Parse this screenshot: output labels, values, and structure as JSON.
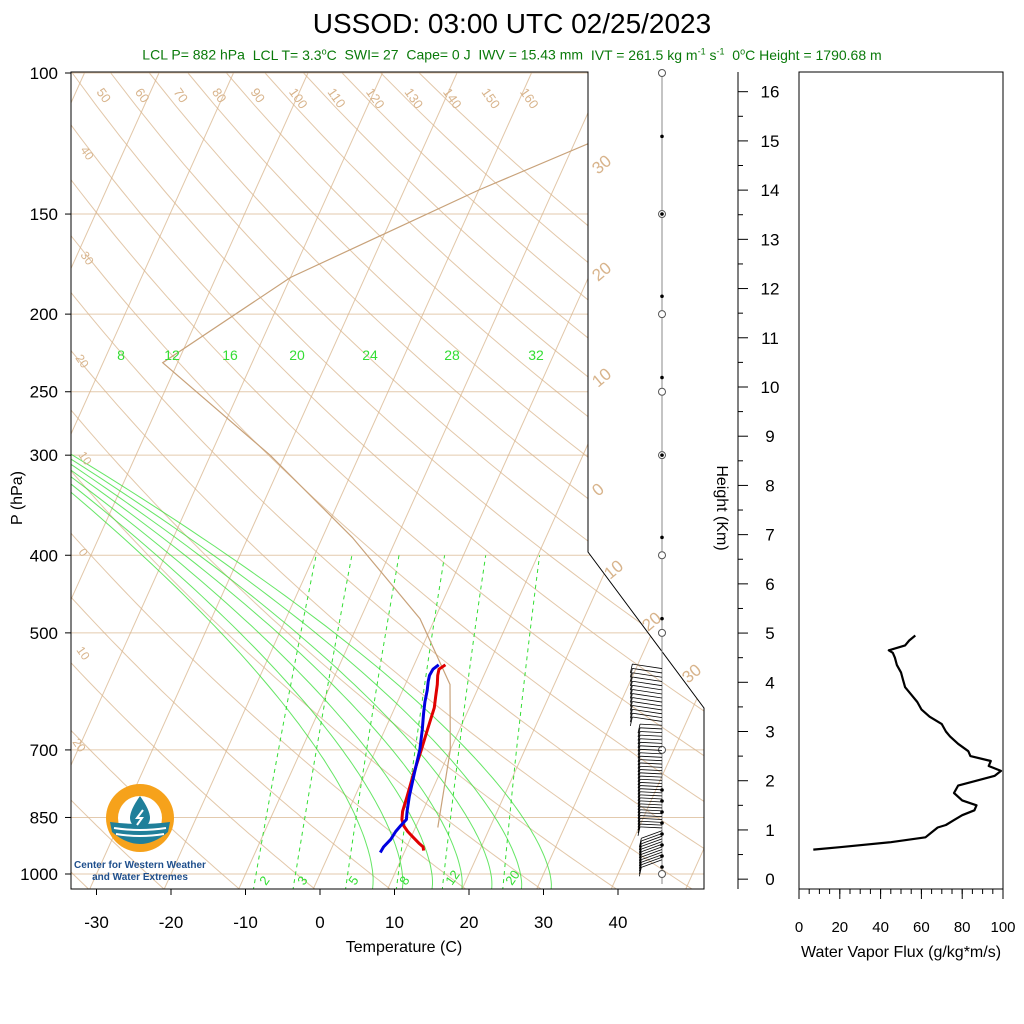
{
  "header": {
    "title": "USSOD: 03:00 UTC 02/25/2023",
    "lcl_p": "LCL P= 882 hPa",
    "lcl_t_prefix": "LCL T= 3.3",
    "lcl_t_unit": "C",
    "swi": "SWI= 27",
    "cape": "Cape= 0 J",
    "iwv": "IWV = 15.43 mm",
    "ivt_prefix": "IVT = 261.5 kg m",
    "ivt_exp1": "-1",
    "ivt_mid": " s",
    "ivt_exp2": "-1",
    "zero_c_height_prefix": "0",
    "zero_c_height_suffix": "C Height = 1790.68 m",
    "degree_sup": "o"
  },
  "logo": {
    "line1": "Center for Western Weather",
    "line2": "and Water Extremes"
  },
  "colors": {
    "temperature": "#e00000",
    "dewpoint": "#0000e0",
    "isotherm": "#d8b48c",
    "mixing_ratio": "#33dd33",
    "flux": "#000000",
    "subtitle": "#0a7a0a"
  },
  "chart_data": [
    {
      "type": "line",
      "subtype": "skew-t",
      "xlabel": "Temperature (C)",
      "ylabel": "P (hPa)",
      "xlim": [
        -34,
        50
      ],
      "ylim": [
        1050,
        100
      ],
      "y_scale": "log",
      "x_ticks": [
        -30,
        -20,
        -10,
        0,
        10,
        20,
        30,
        40
      ],
      "y_ticks": [
        100,
        150,
        200,
        250,
        300,
        400,
        500,
        700,
        850,
        1000
      ],
      "dry_adiabat_labels": [
        50,
        60,
        70,
        80,
        90,
        100,
        110,
        120,
        130,
        140,
        150,
        160
      ],
      "left_edge_labels": [
        40,
        30,
        20,
        10,
        0,
        10,
        20
      ],
      "right_edge_labels": [
        30,
        20,
        10,
        0,
        10,
        20,
        30
      ],
      "moist_adiabat_labels": [
        8,
        12,
        16,
        20,
        24,
        28,
        32
      ],
      "mixing_ratio_labels": [
        2,
        3,
        5,
        8,
        12,
        20
      ],
      "series": [
        {
          "name": "Temperature",
          "p": [
            935,
            925,
            915,
            900,
            885,
            870,
            855,
            835,
            800,
            750,
            700,
            660,
            620,
            600,
            580,
            565,
            555,
            548
          ],
          "values": [
            12.5,
            12.2,
            11.4,
            10.3,
            9.2,
            8.3,
            7.7,
            7.3,
            7.0,
            6.5,
            6.1,
            5.7,
            5.3,
            4.8,
            4.3,
            3.8,
            3.6,
            4.2
          ]
        },
        {
          "name": "Dewpoint",
          "p": [
            940,
            925,
            905,
            885,
            870,
            855,
            835,
            800,
            750,
            700,
            660,
            630,
            610,
            590,
            575,
            565,
            555,
            548
          ],
          "values": [
            6.8,
            6.9,
            7.4,
            7.6,
            7.9,
            8.3,
            7.9,
            7.3,
            6.6,
            5.9,
            5.0,
            4.2,
            3.7,
            3.3,
            2.9,
            2.7,
            2.8,
            3.3
          ]
        }
      ]
    },
    {
      "type": "line",
      "xlabel": "Water Vapor Flux (g/kg*m/s)",
      "ylabel": "Height (Km)",
      "xlim": [
        0,
        100
      ],
      "ylim": [
        -0.2,
        16.4
      ],
      "x_ticks": [
        0,
        20,
        40,
        60,
        80,
        100
      ],
      "y_ticks": [
        0,
        1,
        2,
        3,
        4,
        5,
        6,
        7,
        8,
        9,
        10,
        11,
        12,
        13,
        14,
        15,
        16
      ],
      "series": [
        {
          "name": "Water Vapor Flux",
          "height_km": [
            0.6,
            0.65,
            0.75,
            0.85,
            0.95,
            1.05,
            1.1,
            1.2,
            1.3,
            1.4,
            1.5,
            1.6,
            1.75,
            1.9,
            2.0,
            2.1,
            2.2,
            2.3,
            2.4,
            2.5,
            2.6,
            2.75,
            2.9,
            3.0,
            3.15,
            3.3,
            3.45,
            3.6,
            3.75,
            3.9,
            4.05,
            4.2,
            4.35,
            4.5,
            4.6,
            4.65,
            4.75,
            4.85,
            4.95
          ],
          "values": [
            7,
            20,
            45,
            62,
            65,
            68,
            72,
            76,
            80,
            86,
            87,
            80,
            76,
            78,
            87,
            96,
            99,
            93,
            94,
            84,
            83,
            78,
            74,
            72,
            70,
            64,
            60,
            58,
            55,
            52,
            51,
            50,
            48,
            47,
            46,
            44,
            52,
            54,
            57
          ]
        }
      ]
    }
  ],
  "wind_profile": {
    "dot_heights_hpa": [
      120,
      150,
      190,
      240,
      300,
      380,
      480
    ],
    "circle_heights_hpa": [
      100,
      150,
      200,
      250,
      300,
      400,
      500,
      700,
      1000
    ]
  }
}
